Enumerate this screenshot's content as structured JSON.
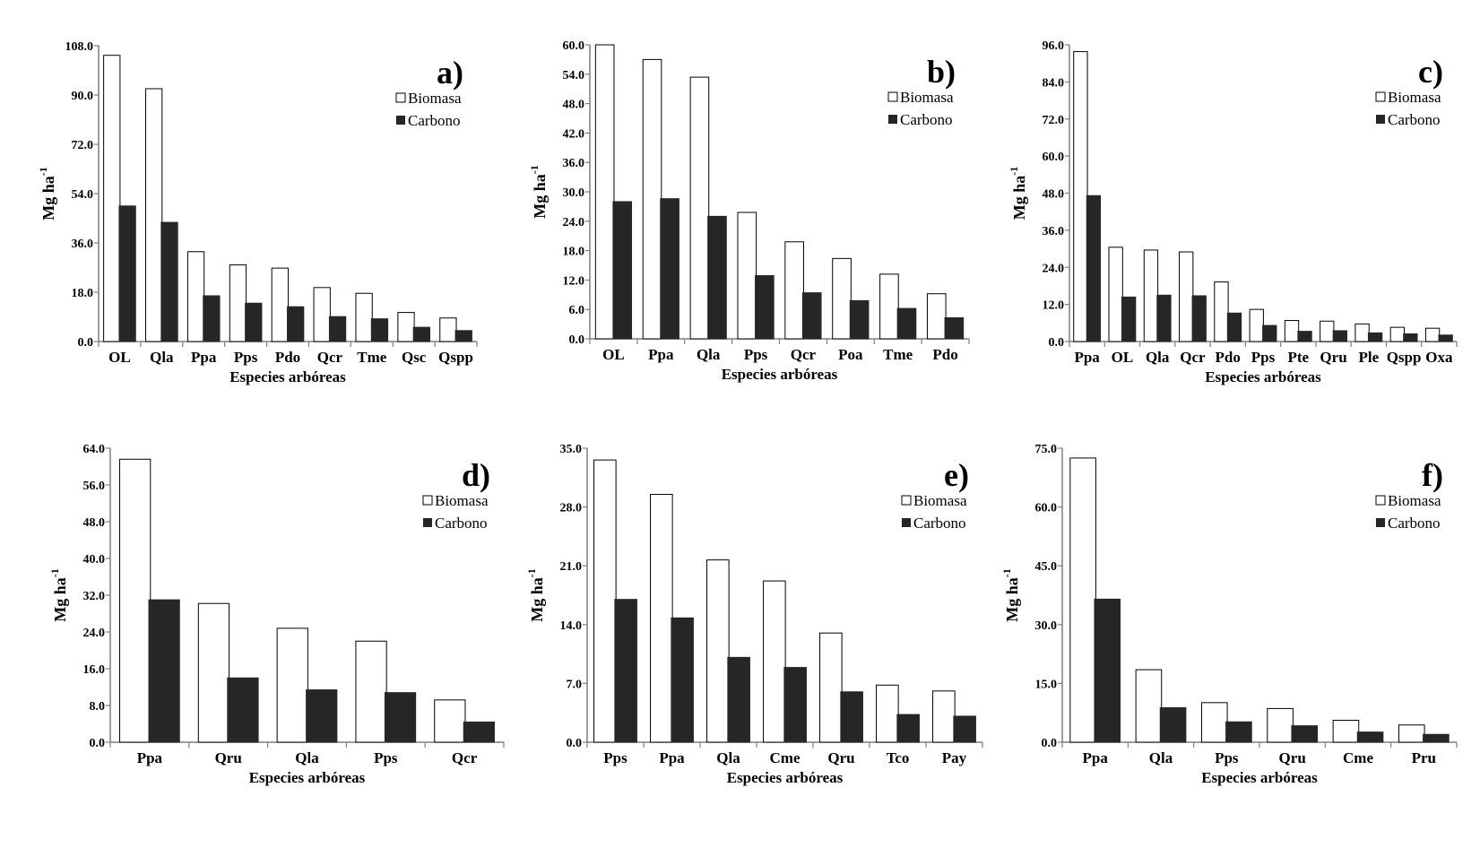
{
  "chart_data": [
    {
      "type": "bar",
      "panel": "a)",
      "categories": [
        "OL",
        "Qla",
        "Ppa",
        "Pps",
        "Pdo",
        "Qcr",
        "Tme",
        "Qsc",
        "Qspp"
      ],
      "series": [
        {
          "name": "Biomasa",
          "values": [
            104.5,
            92.3,
            32.8,
            28.0,
            26.8,
            19.7,
            17.6,
            10.6,
            8.6
          ]
        },
        {
          "name": "Carbono",
          "values": [
            49.5,
            43.5,
            16.7,
            14.0,
            12.7,
            9.1,
            8.3,
            5.2,
            4.0
          ]
        }
      ],
      "ylim": [
        0,
        108
      ],
      "yticks": [
        "0.0",
        "18.0",
        "36.0",
        "54.0",
        "72.0",
        "90.0",
        "108.0"
      ],
      "ylabel": "Mg ha",
      "ylabel_sup": "-1",
      "xlabel": "Especies arbóreas"
    },
    {
      "type": "bar",
      "panel": "b)",
      "categories": [
        "OL",
        "Ppa",
        "Qla",
        "Pps",
        "Qcr",
        "Poa",
        "Tme",
        "Pdo"
      ],
      "series": [
        {
          "name": "Biomasa",
          "values": [
            60.0,
            57.0,
            53.4,
            25.8,
            19.8,
            16.4,
            13.2,
            9.2
          ]
        },
        {
          "name": "Carbono",
          "values": [
            28.0,
            28.6,
            25.0,
            12.9,
            9.4,
            7.8,
            6.2,
            4.3
          ]
        }
      ],
      "ylim": [
        0,
        60
      ],
      "yticks": [
        "0.0",
        "6.0",
        "12.0",
        "18.0",
        "24.0",
        "30.0",
        "36.0",
        "42.0",
        "48.0",
        "54.0",
        "60.0"
      ],
      "ylabel": "Mg ha",
      "ylabel_sup": "-1",
      "xlabel": "Especies arbóreas"
    },
    {
      "type": "bar",
      "panel": "c)",
      "categories": [
        "Ppa",
        "OL",
        "Qla",
        "Qcr",
        "Pdo",
        "Pps",
        "Pte",
        "Qru",
        "Ple",
        "Qspp",
        "Oxa"
      ],
      "series": [
        {
          "name": "Biomasa",
          "values": [
            93.8,
            30.5,
            29.6,
            29.0,
            19.3,
            10.4,
            6.8,
            6.6,
            5.7,
            4.6,
            4.3
          ]
        },
        {
          "name": "Carbono",
          "values": [
            47.2,
            14.4,
            15.0,
            14.8,
            9.2,
            5.2,
            3.3,
            3.5,
            2.8,
            2.5,
            2.1
          ]
        }
      ],
      "ylim": [
        0,
        96
      ],
      "yticks": [
        "0.0",
        "12.0",
        "24.0",
        "36.0",
        "48.0",
        "60.0",
        "72.0",
        "84.0",
        "96.0"
      ],
      "ylabel": "Mg ha",
      "ylabel_sup": "-1",
      "xlabel": "Especies arbóreas"
    },
    {
      "type": "bar",
      "panel": "d)",
      "categories": [
        "Ppa",
        "Qru",
        "Qla",
        "Pps",
        "Qcr"
      ],
      "series": [
        {
          "name": "Biomasa",
          "values": [
            61.6,
            30.2,
            24.8,
            22.0,
            9.2
          ]
        },
        {
          "name": "Carbono",
          "values": [
            31.0,
            14.0,
            11.4,
            10.8,
            4.4
          ]
        }
      ],
      "ylim": [
        0,
        64
      ],
      "yticks": [
        "0.0",
        "8.0",
        "16.0",
        "24.0",
        "32.0",
        "40.0",
        "48.0",
        "56.0",
        "64.0"
      ],
      "ylabel": "Mg ha",
      "ylabel_sup": "-1",
      "xlabel": "Especies arbóreas"
    },
    {
      "type": "bar",
      "panel": "e)",
      "categories": [
        "Pps",
        "Ppa",
        "Qla",
        "Cme",
        "Qru",
        "Tco",
        "Pay"
      ],
      "series": [
        {
          "name": "Biomasa",
          "values": [
            33.6,
            29.5,
            21.7,
            19.2,
            13.0,
            6.8,
            6.1
          ]
        },
        {
          "name": "Carbono",
          "values": [
            17.0,
            14.8,
            10.1,
            8.9,
            6.0,
            3.3,
            3.1
          ]
        }
      ],
      "ylim": [
        0,
        35
      ],
      "yticks": [
        "0.0",
        "7.0",
        "14.0",
        "21.0",
        "28.0",
        "35.0"
      ],
      "ylabel": "Mg ha",
      "ylabel_sup": "-1",
      "xlabel": "Especies arbóreas"
    },
    {
      "type": "bar",
      "panel": "f)",
      "categories": [
        "Ppa",
        "Qla",
        "Pps",
        "Qru",
        "Cme",
        "Pru"
      ],
      "series": [
        {
          "name": "Biomasa",
          "values": [
            72.5,
            18.5,
            10.1,
            8.6,
            5.6,
            4.4
          ]
        },
        {
          "name": "Carbono",
          "values": [
            36.5,
            8.8,
            5.2,
            4.2,
            2.6,
            2.0
          ]
        }
      ],
      "ylim": [
        0,
        75
      ],
      "yticks": [
        "0.0",
        "15.0",
        "30.0",
        "45.0",
        "60.0",
        "75.0"
      ],
      "ylabel": "Mg ha",
      "ylabel_sup": "-1",
      "xlabel": "Especies arbóreas"
    }
  ],
  "colors": {
    "biomasa_fill": "#ffffff",
    "carbono_fill": "#262626",
    "axis": "#7f7f7f",
    "bar_outline": "#000000"
  }
}
